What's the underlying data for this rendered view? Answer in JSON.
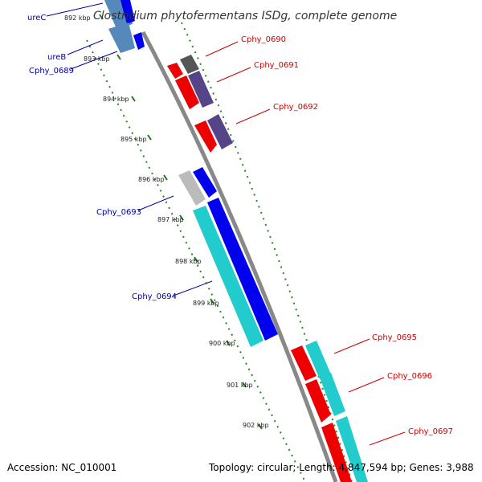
{
  "title": "Clostridium phytofermentans ISDg, complete genome",
  "footer": {
    "accession": "Accession: NC_010001",
    "summary": "Topology: circular; Length: 4,847,594 bp; Genes: 3,988"
  },
  "ticks": [
    "892 kbp",
    "893 kbp",
    "894 kbp",
    "895 kbp",
    "896 kbp",
    "897 kbp",
    "898 kbp",
    "899 kbp",
    "900 kbp",
    "901 kbp",
    "902 kbp"
  ],
  "genes": {
    "reverse": [
      "ureC",
      "ureB",
      "Cphy_0689",
      "Cphy_0693",
      "Cphy_0694"
    ],
    "forward": [
      "Cphy_0690",
      "Cphy_0691",
      "Cphy_0692",
      "Cphy_0695",
      "Cphy_0696",
      "Cphy_0697"
    ]
  },
  "colors": {
    "backbone": "#888888",
    "forward_cds": "#ee0000",
    "reverse_cds": "#0000ee",
    "rna_cyan": "#22cccc",
    "cog_purple": "#554488",
    "cog_steel": "#5588bb",
    "unknown_grey": "#bbbbbb",
    "dark_grey": "#555555",
    "tick_green": "#228822",
    "label_red": "#cc0000",
    "label_blue": "#000099"
  }
}
